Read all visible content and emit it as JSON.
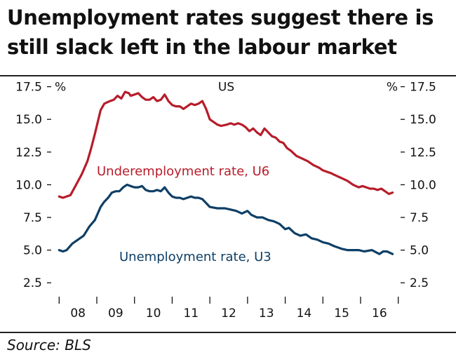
{
  "title": "Unemployment rates suggest there is still slack left in the labour market",
  "source": "Source: BLS",
  "colors": {
    "u6": "#b71c2a",
    "u3": "#0e3f66",
    "axis": "#111111"
  },
  "chart_data": {
    "type": "line",
    "panel_title": "US",
    "unit_left": "%",
    "unit_right": "%",
    "ylim": [
      1.6,
      17.8
    ],
    "xlim": [
      2007.92,
      2016.95
    ],
    "y_ticks": [
      2.5,
      5.0,
      7.5,
      10.0,
      12.5,
      15.0,
      17.5
    ],
    "y_tick_labels": [
      "2.5",
      "5.0",
      "7.5",
      "10.0",
      "12.5",
      "15.0",
      "17.5"
    ],
    "x_tick_labels": [
      "08",
      "09",
      "10",
      "11",
      "12",
      "13",
      "14",
      "15",
      "16"
    ],
    "series": [
      {
        "name": "Underemployment rate, U6",
        "color": "#b71c2a",
        "x": [
          2008.0,
          2008.1,
          2008.3,
          2008.45,
          2008.6,
          2008.75,
          2008.85,
          2008.95,
          2009.1,
          2009.2,
          2009.35,
          2009.45,
          2009.55,
          2009.65,
          2009.75,
          2009.85,
          2009.9,
          2010.0,
          2010.1,
          2010.2,
          2010.3,
          2010.4,
          2010.5,
          2010.6,
          2010.7,
          2010.8,
          2010.9,
          2011.0,
          2011.1,
          2011.2,
          2011.3,
          2011.4,
          2011.5,
          2011.6,
          2011.7,
          2011.8,
          2011.9,
          2012.0,
          2012.1,
          2012.2,
          2012.3,
          2012.45,
          2012.55,
          2012.65,
          2012.75,
          2012.85,
          2012.95,
          2013.05,
          2013.15,
          2013.25,
          2013.35,
          2013.45,
          2013.55,
          2013.65,
          2013.75,
          2013.85,
          2013.95,
          2014.05,
          2014.15,
          2014.3,
          2014.45,
          2014.6,
          2014.75,
          2014.9,
          2015.0,
          2015.1,
          2015.2,
          2015.35,
          2015.5,
          2015.65,
          2015.8,
          2015.95,
          2016.05,
          2016.15,
          2016.25,
          2016.35,
          2016.45,
          2016.55,
          2016.65,
          2016.75,
          2016.85
        ],
        "values": [
          9.1,
          9.0,
          9.2,
          10.0,
          10.8,
          11.8,
          12.8,
          13.9,
          15.7,
          16.2,
          16.4,
          16.5,
          16.8,
          16.6,
          17.1,
          17.0,
          16.8,
          16.9,
          17.0,
          16.7,
          16.5,
          16.5,
          16.7,
          16.4,
          16.5,
          16.9,
          16.4,
          16.1,
          16.0,
          16.0,
          15.8,
          16.0,
          16.2,
          16.1,
          16.2,
          16.4,
          15.8,
          15.0,
          14.8,
          14.6,
          14.5,
          14.6,
          14.7,
          14.6,
          14.7,
          14.6,
          14.4,
          14.1,
          14.3,
          14.0,
          13.8,
          14.3,
          14.0,
          13.7,
          13.6,
          13.3,
          13.2,
          12.8,
          12.6,
          12.2,
          12.0,
          11.8,
          11.5,
          11.3,
          11.1,
          11.0,
          10.9,
          10.7,
          10.5,
          10.3,
          10.0,
          9.8,
          9.9,
          9.8,
          9.7,
          9.7,
          9.6,
          9.7,
          9.5,
          9.3,
          9.4
        ]
      },
      {
        "name": "Unemployment rate, U3",
        "color": "#0e3f66",
        "x": [
          2008.0,
          2008.1,
          2008.2,
          2008.35,
          2008.5,
          2008.65,
          2008.8,
          2008.95,
          2009.1,
          2009.2,
          2009.3,
          2009.4,
          2009.5,
          2009.6,
          2009.7,
          2009.8,
          2009.9,
          2010.0,
          2010.1,
          2010.2,
          2010.3,
          2010.4,
          2010.5,
          2010.6,
          2010.7,
          2010.8,
          2010.9,
          2011.0,
          2011.1,
          2011.2,
          2011.3,
          2011.4,
          2011.5,
          2011.6,
          2011.7,
          2011.8,
          2011.9,
          2012.0,
          2012.2,
          2012.4,
          2012.55,
          2012.7,
          2012.85,
          2013.0,
          2013.1,
          2013.25,
          2013.4,
          2013.55,
          2013.7,
          2013.85,
          2014.0,
          2014.1,
          2014.25,
          2014.4,
          2014.55,
          2014.7,
          2014.85,
          2015.0,
          2015.15,
          2015.3,
          2015.5,
          2015.65,
          2015.8,
          2015.95,
          2016.1,
          2016.3,
          2016.5,
          2016.6,
          2016.7,
          2016.85
        ],
        "values": [
          5.0,
          4.9,
          5.0,
          5.5,
          5.8,
          6.1,
          6.8,
          7.3,
          8.3,
          8.7,
          9.0,
          9.4,
          9.5,
          9.5,
          9.8,
          10.0,
          9.9,
          9.8,
          9.8,
          9.9,
          9.6,
          9.5,
          9.5,
          9.6,
          9.5,
          9.8,
          9.4,
          9.1,
          9.0,
          9.0,
          8.9,
          9.0,
          9.1,
          9.0,
          9.0,
          8.9,
          8.6,
          8.3,
          8.2,
          8.2,
          8.1,
          8.0,
          7.8,
          8.0,
          7.7,
          7.5,
          7.5,
          7.3,
          7.2,
          7.0,
          6.6,
          6.7,
          6.3,
          6.1,
          6.2,
          5.9,
          5.8,
          5.6,
          5.5,
          5.3,
          5.1,
          5.0,
          5.0,
          5.0,
          4.9,
          5.0,
          4.7,
          4.9,
          4.9,
          4.7
        ]
      }
    ],
    "annotations": [
      {
        "text": "Underemployment rate, U6",
        "series": 0
      },
      {
        "text": "Unemployment rate, U3",
        "series": 1
      }
    ]
  }
}
